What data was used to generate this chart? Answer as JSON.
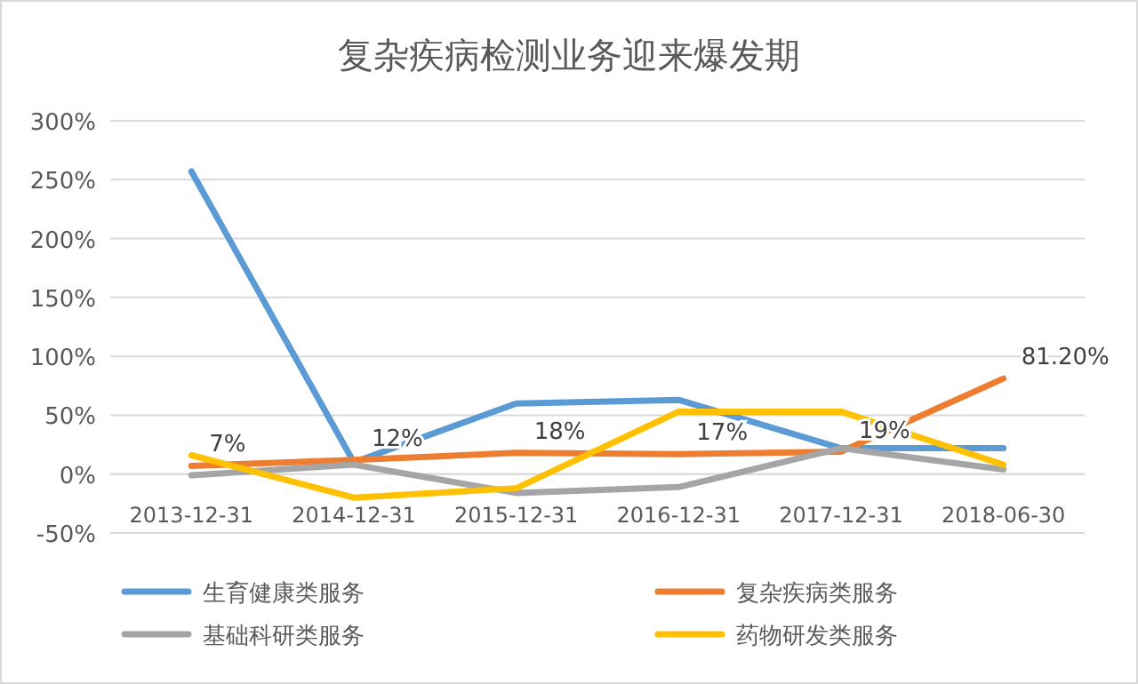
{
  "chart_data": {
    "type": "line",
    "title": "复杂疾病检测业务迎来爆发期",
    "categories": [
      "2013-12-31",
      "2014-12-31",
      "2015-12-31",
      "2016-12-31",
      "2017-12-31",
      "2018-06-30"
    ],
    "series": [
      {
        "name": "生育健康类服务",
        "color": "#5b9bd5",
        "values": [
          257,
          10,
          60,
          63,
          22,
          22
        ]
      },
      {
        "name": "复杂疾病类服务",
        "color": "#ed7d31",
        "values": [
          7,
          12,
          18,
          17,
          19,
          81.2
        ],
        "value_labels": [
          "7%",
          "12%",
          "18%",
          "17%",
          "19%",
          "81.20%"
        ]
      },
      {
        "name": "基础科研类服务",
        "color": "#a5a5a5",
        "values": [
          -1,
          8,
          -16,
          -11,
          22,
          4
        ]
      },
      {
        "name": "药物研发类服务",
        "color": "#ffc000",
        "values": [
          16,
          -20,
          -12,
          53,
          53,
          8
        ]
      }
    ],
    "ylim": [
      -50,
      300
    ],
    "yticks": [
      {
        "value": -50,
        "label": "-50%"
      },
      {
        "value": 0,
        "label": "0%"
      },
      {
        "value": 50,
        "label": "50%"
      },
      {
        "value": 100,
        "label": "100%"
      },
      {
        "value": 150,
        "label": "150%"
      },
      {
        "value": 200,
        "label": "200%"
      },
      {
        "value": 250,
        "label": "250%"
      },
      {
        "value": 300,
        "label": "300%"
      }
    ],
    "grid": "y",
    "legend": "bottom",
    "line_style": "solid",
    "marker": "none"
  }
}
